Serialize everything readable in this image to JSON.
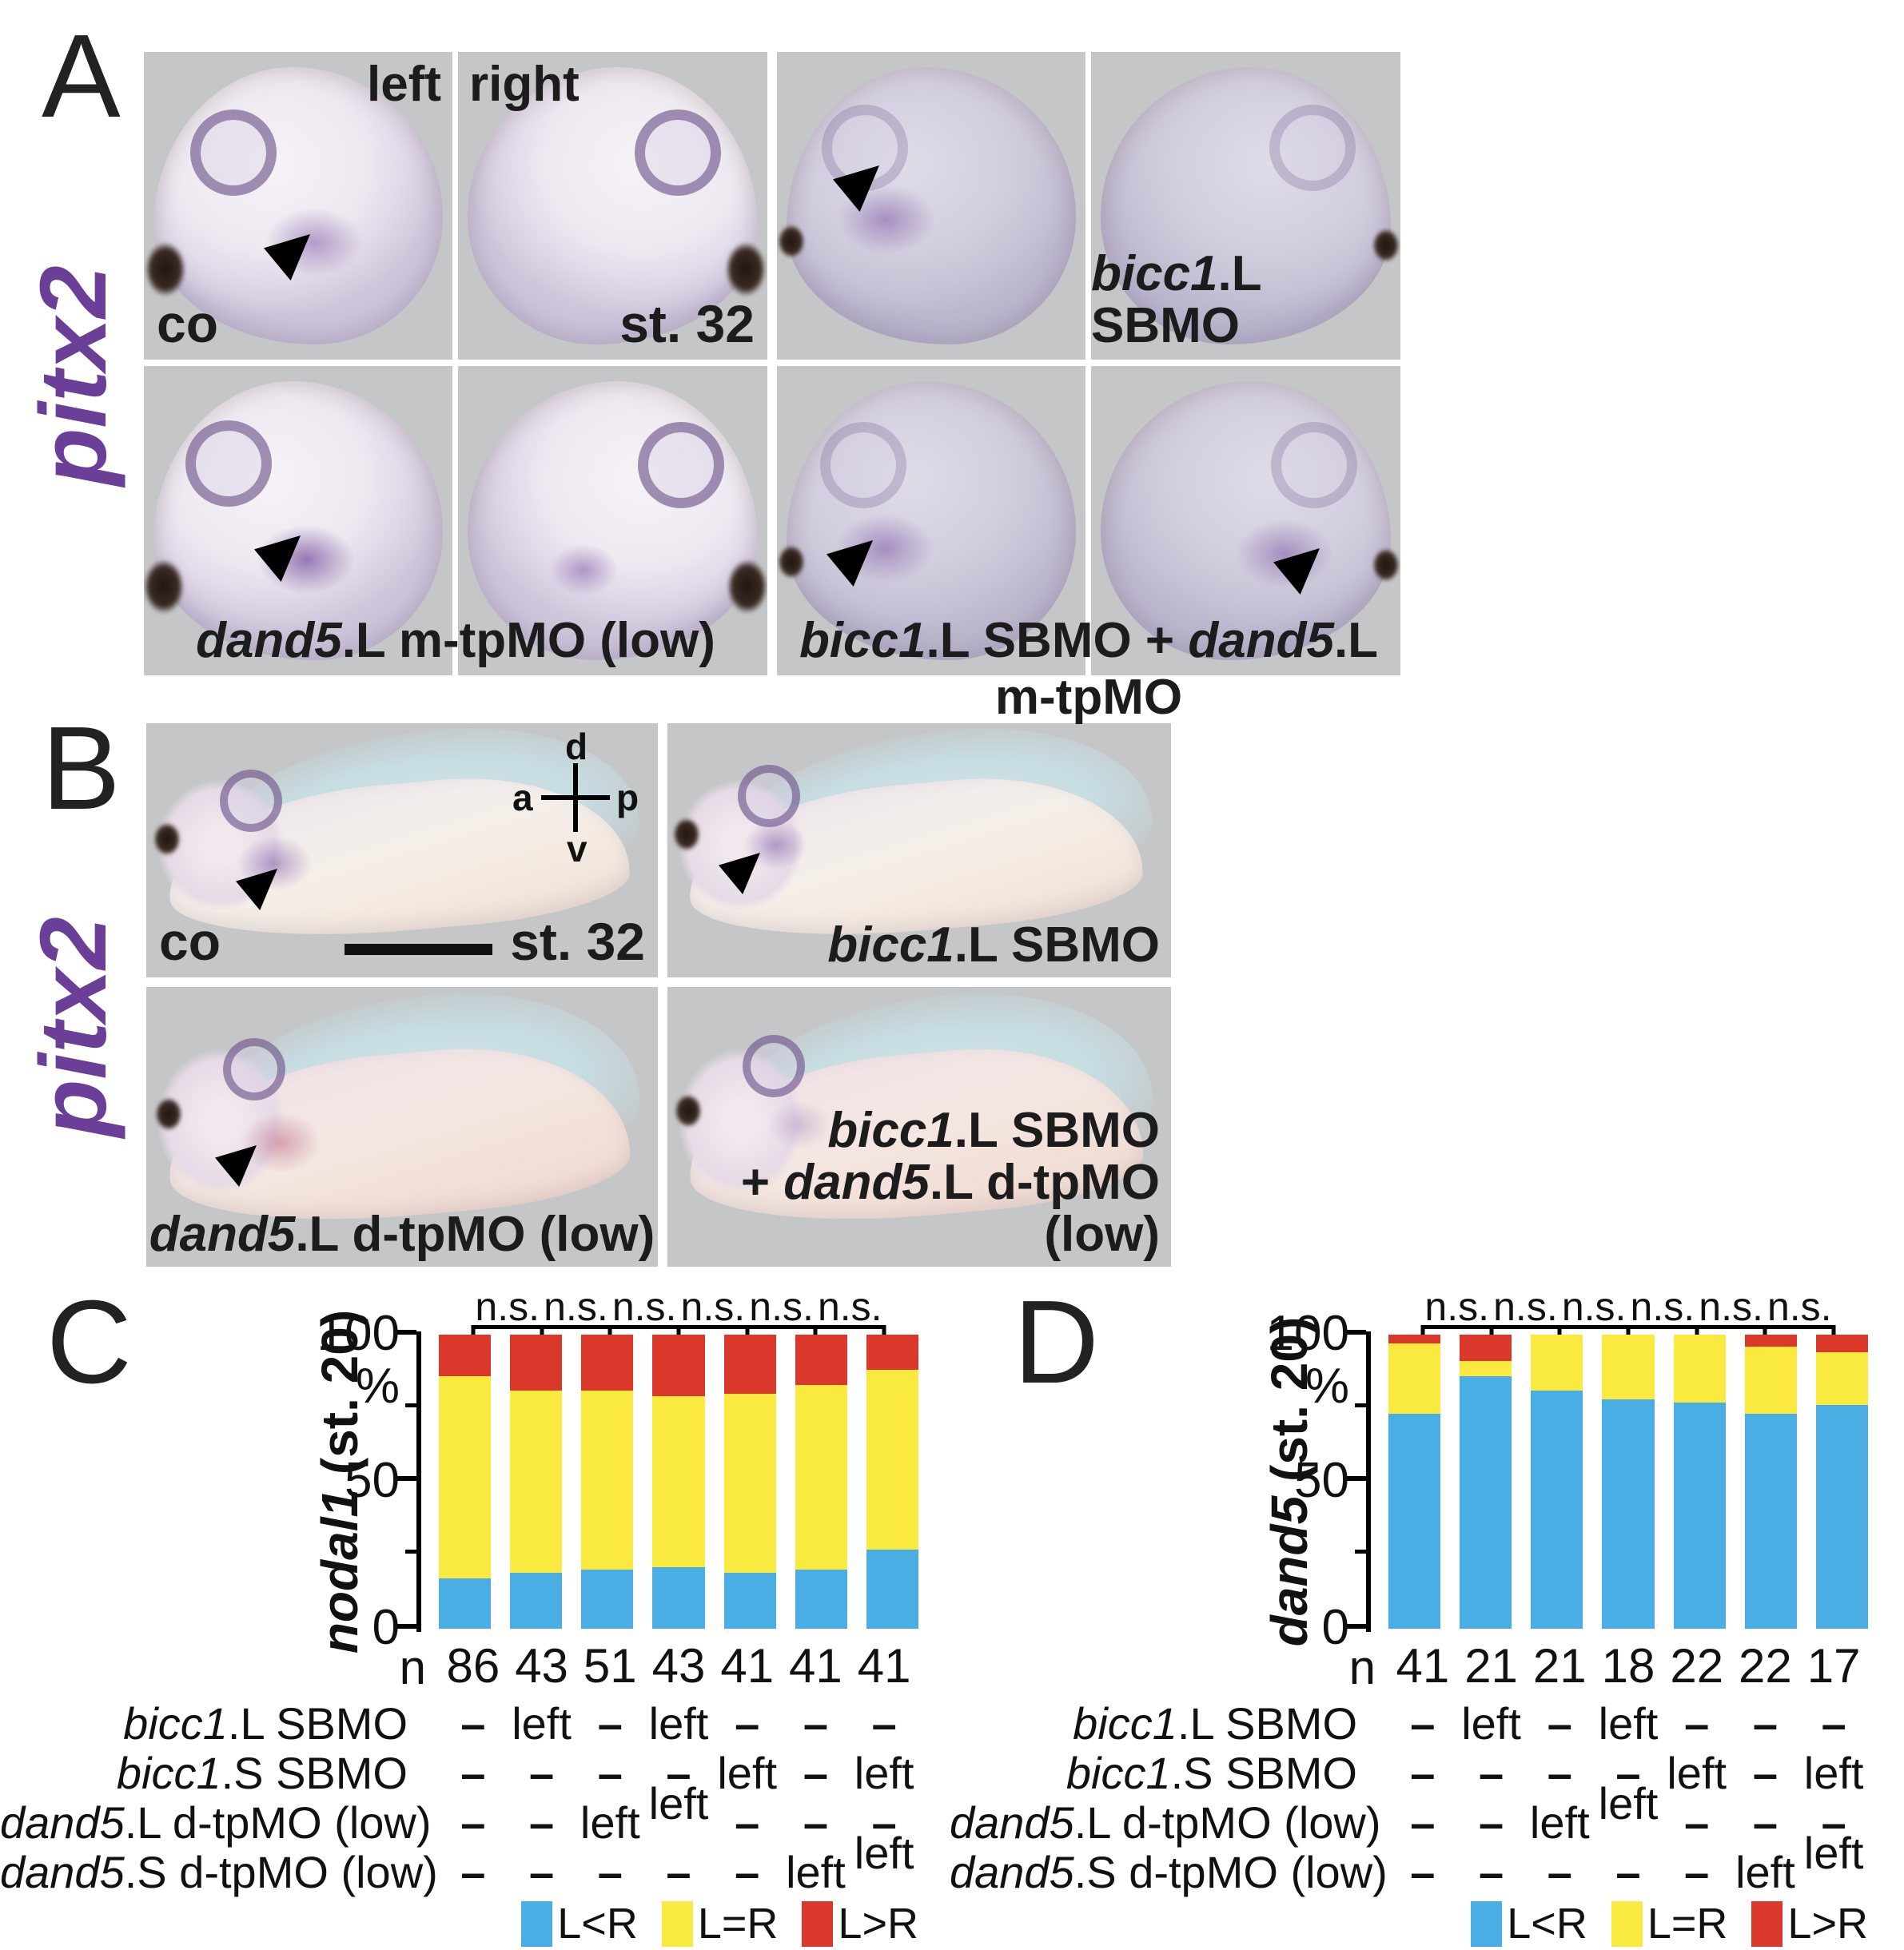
{
  "panels": {
    "A": {
      "label": "A",
      "gene_label": "pitx2",
      "gene_color": "#6B3F98",
      "side_left": "left",
      "side_right": "right",
      "co_label": "co",
      "stage_label": "st. 32",
      "bicc1_label": [
        {
          "t": "bicc1",
          "i": true
        },
        {
          "t": ".L SBMO",
          "i": false
        }
      ],
      "dand5_label": [
        {
          "t": "dand5",
          "i": true
        },
        {
          "t": ".L m-tpMO (low)",
          "i": false
        }
      ],
      "combo_label": [
        {
          "t": "bicc1",
          "i": true
        },
        {
          "t": ".L SBMO + ",
          "i": false
        },
        {
          "t": "dand5",
          "i": true
        },
        {
          "t": ".L m-tpMO",
          "i": false
        }
      ]
    },
    "B": {
      "label": "B",
      "gene_label": "pitx2",
      "gene_color": "#6B3F98",
      "co_label": "co",
      "stage_label": "st. 32",
      "compass": {
        "d": "d",
        "a": "a",
        "p": "p",
        "v": "v"
      },
      "bicc1_label": [
        {
          "t": "bicc1",
          "i": true
        },
        {
          "t": ".L SBMO",
          "i": false
        }
      ],
      "dand5_label": [
        {
          "t": "dand5",
          "i": true
        },
        {
          "t": ".L d-tpMO (low)",
          "i": false
        }
      ],
      "combo_line1": [
        {
          "t": "bicc1",
          "i": true
        },
        {
          "t": ".L SBMO",
          "i": false
        }
      ],
      "combo_line2": [
        {
          "t": "+ ",
          "i": false
        },
        {
          "t": "dand5",
          "i": true
        },
        {
          "t": ".L d-tpMO (low)",
          "i": false
        }
      ]
    },
    "C": {
      "label": "C"
    },
    "D": {
      "label": "D"
    }
  },
  "chart_data": [
    {
      "type": "bar",
      "subtype": "stacked-percent",
      "panel": "C",
      "ylabel_segments": [
        {
          "t": "nodal1",
          "i": true
        },
        {
          "t": " (st. 20)",
          "i": false
        }
      ],
      "percent_symbol": "%",
      "yticks": [
        0,
        50,
        100
      ],
      "ylim": [
        0,
        100
      ],
      "grid": false,
      "ns_labels": [
        "n.s.",
        "n.s.",
        "n.s.",
        "n.s.",
        "n.s.",
        "n.s."
      ],
      "n_label": "n",
      "n_values": [
        86,
        43,
        51,
        43,
        41,
        41,
        41
      ],
      "series": [
        {
          "name": "L<R",
          "color": "#4AADE4",
          "values": [
            17,
            19,
            20,
            21,
            19,
            20,
            27
          ]
        },
        {
          "name": "L=R",
          "color": "#FAE93E",
          "values": [
            69,
            62,
            61,
            58,
            61,
            63,
            61
          ]
        },
        {
          "name": "L>R",
          "color": "#DB382C",
          "values": [
            14,
            19,
            19,
            21,
            20,
            17,
            12
          ]
        }
      ],
      "treatments": [
        {
          "label_segments": [
            {
              "t": "bicc1",
              "i": true
            },
            {
              "t": ".L SBMO",
              "i": false
            }
          ],
          "values": [
            "–",
            "left",
            "–",
            "left",
            "–",
            "–",
            "–"
          ],
          "raised_cols": []
        },
        {
          "label_segments": [
            {
              "t": "bicc1",
              "i": true
            },
            {
              "t": ".S SBMO",
              "i": false
            }
          ],
          "values": [
            "–",
            "–",
            "–",
            "–",
            "left",
            "–",
            "left"
          ],
          "raised_cols": []
        },
        {
          "label_segments": [
            {
              "t": "dand5",
              "i": true
            },
            {
              "t": ".L d-tpMO (low)",
              "i": false
            }
          ],
          "values": [
            "–",
            "–",
            "left",
            "left",
            "–",
            "–",
            "–"
          ],
          "raised_cols": [
            3
          ]
        },
        {
          "label_segments": [
            {
              "t": "dand5",
              "i": true
            },
            {
              "t": ".S d-tpMO (low)",
              "i": false
            }
          ],
          "values": [
            "–",
            "–",
            "–",
            "–",
            "–",
            "left",
            "left"
          ],
          "raised_cols": [
            6
          ]
        }
      ]
    },
    {
      "type": "bar",
      "subtype": "stacked-percent",
      "panel": "D",
      "ylabel_segments": [
        {
          "t": "dand5",
          "i": true
        },
        {
          "t": " (st. 20)",
          "i": false
        }
      ],
      "percent_symbol": "%",
      "yticks": [
        0,
        50,
        100
      ],
      "ylim": [
        0,
        100
      ],
      "grid": false,
      "ns_labels": [
        "n.s.",
        "n.s.",
        "n.s.",
        "n.s.",
        "n.s.",
        "n.s."
      ],
      "n_label": "n",
      "n_values": [
        41,
        21,
        21,
        18,
        22,
        22,
        17
      ],
      "series": [
        {
          "name": "L<R",
          "color": "#4AADE4",
          "values": [
            73,
            86,
            81,
            78,
            77,
            73,
            76
          ]
        },
        {
          "name": "L=R",
          "color": "#FAE93E",
          "values": [
            24,
            5,
            19,
            22,
            23,
            23,
            18
          ]
        },
        {
          "name": "L>R",
          "color": "#DB382C",
          "values": [
            3,
            9,
            0,
            0,
            0,
            4,
            6
          ]
        }
      ],
      "treatments": [
        {
          "label_segments": [
            {
              "t": "bicc1",
              "i": true
            },
            {
              "t": ".L SBMO",
              "i": false
            }
          ],
          "values": [
            "–",
            "left",
            "–",
            "left",
            "–",
            "–",
            "–"
          ],
          "raised_cols": []
        },
        {
          "label_segments": [
            {
              "t": "bicc1",
              "i": true
            },
            {
              "t": ".S SBMO",
              "i": false
            }
          ],
          "values": [
            "–",
            "–",
            "–",
            "–",
            "left",
            "–",
            "left"
          ],
          "raised_cols": []
        },
        {
          "label_segments": [
            {
              "t": "dand5",
              "i": true
            },
            {
              "t": ".L d-tpMO (low)",
              "i": false
            }
          ],
          "values": [
            "–",
            "–",
            "left",
            "left",
            "–",
            "–",
            "–"
          ],
          "raised_cols": [
            3
          ]
        },
        {
          "label_segments": [
            {
              "t": "dand5",
              "i": true
            },
            {
              "t": ".S d-tpMO (low)",
              "i": false
            }
          ],
          "values": [
            "–",
            "–",
            "–",
            "–",
            "–",
            "left",
            "left"
          ],
          "raised_cols": [
            6
          ]
        }
      ]
    }
  ],
  "legend": {
    "items": [
      {
        "label": "L<R",
        "color": "#4AADE4"
      },
      {
        "label": "L=R",
        "color": "#FAE93E"
      },
      {
        "label": "L>R",
        "color": "#DB382C"
      }
    ]
  }
}
